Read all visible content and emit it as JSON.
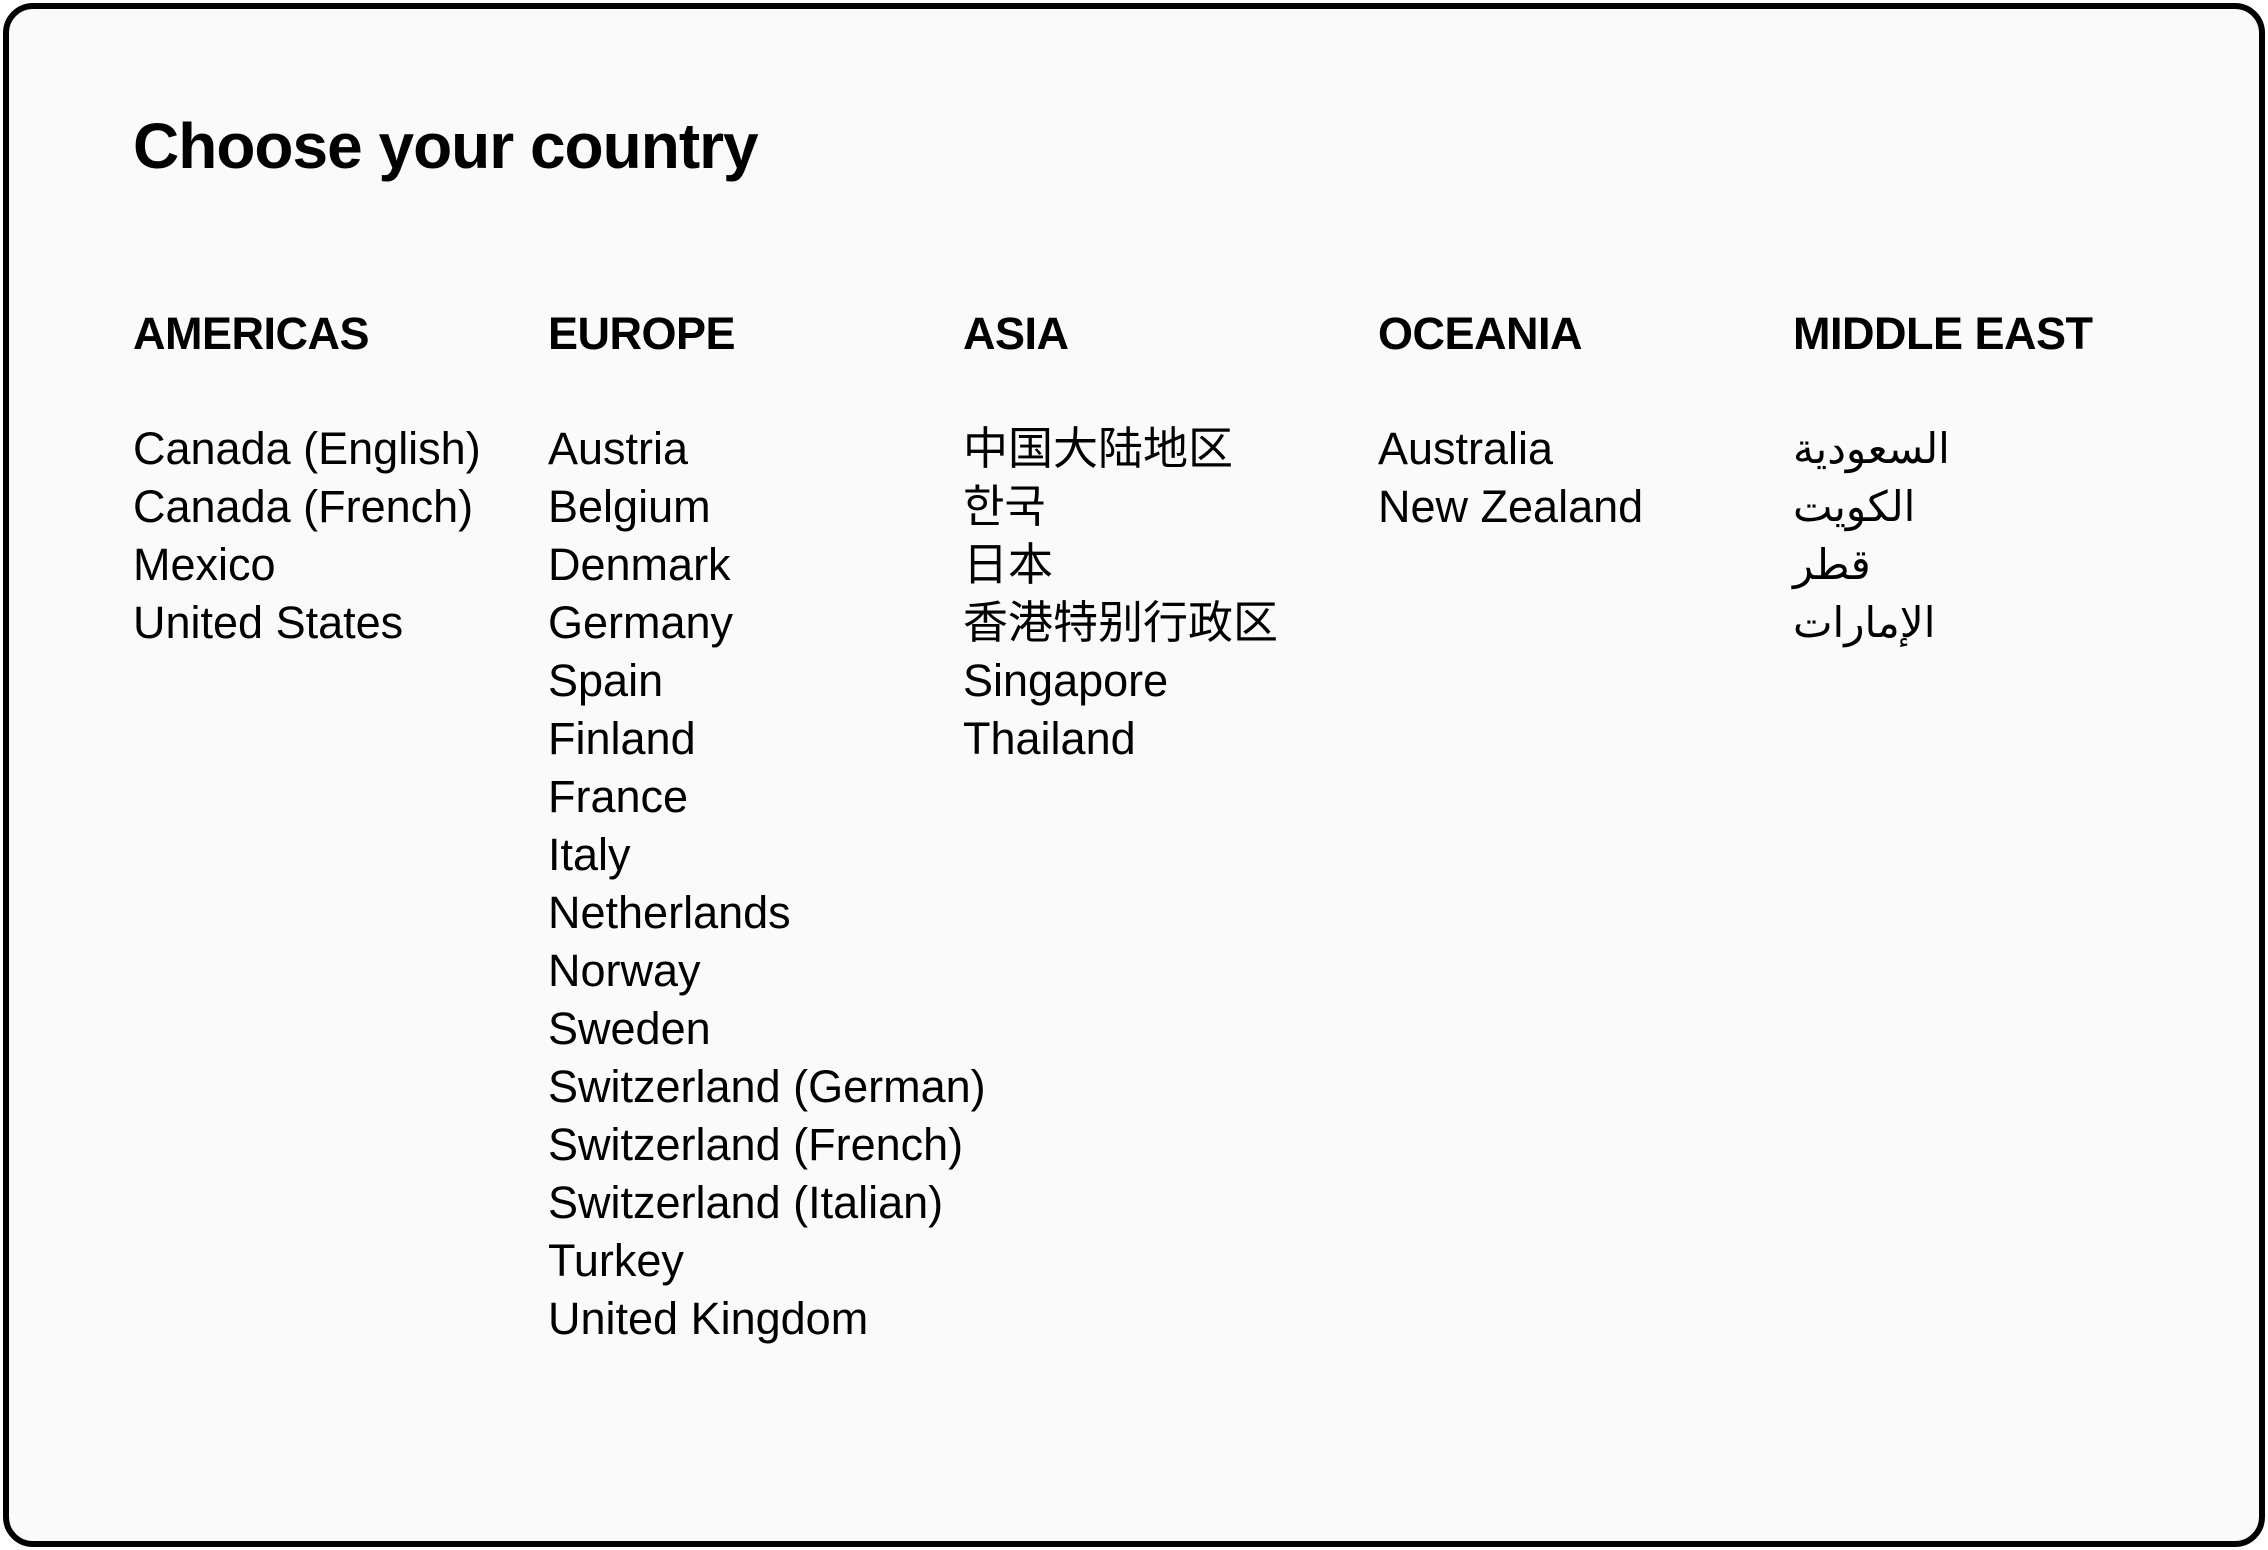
{
  "title": "Choose your country",
  "regions": [
    {
      "name": "AMERICAS",
      "countries": [
        "Canada (English)",
        "Canada (French)",
        "Mexico",
        "United States"
      ]
    },
    {
      "name": "EUROPE",
      "countries": [
        "Austria",
        "Belgium",
        "Denmark",
        "Germany",
        "Spain",
        "Finland",
        "France",
        "Italy",
        "Netherlands",
        "Norway",
        "Sweden",
        "Switzerland (German)",
        "Switzerland (French)",
        "Switzerland (Italian)",
        "Turkey",
        "United Kingdom"
      ]
    },
    {
      "name": "ASIA",
      "countries": [
        "中国大陆地区",
        "한국",
        "日本",
        "香港特别行政区",
        "Singapore",
        "Thailand"
      ]
    },
    {
      "name": "OCEANIA",
      "countries": [
        "Australia",
        "New Zealand"
      ]
    },
    {
      "name": "MIDDLE EAST",
      "countries": [
        "السعودية",
        "الكويت",
        "قطر",
        "الإمارات"
      ]
    }
  ]
}
